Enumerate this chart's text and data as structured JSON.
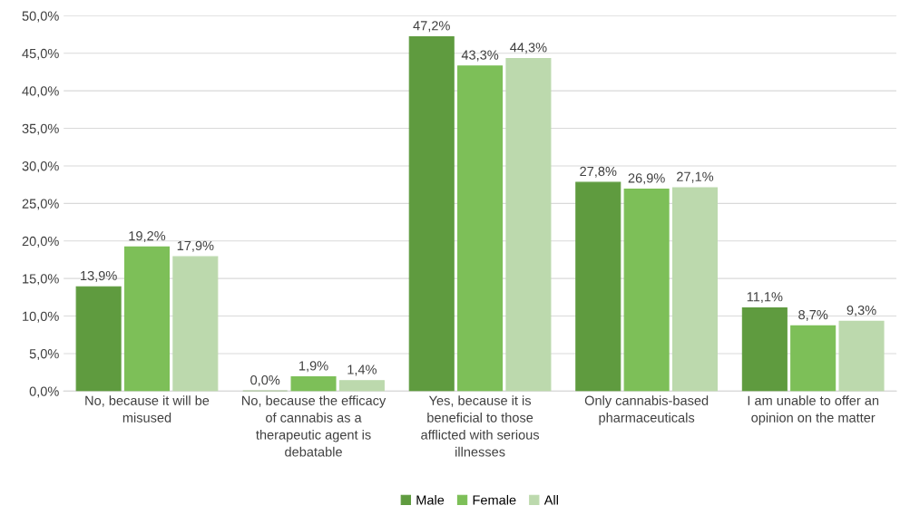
{
  "chart_data": {
    "type": "bar",
    "categories": [
      "No, because it will be\nmisused",
      "No, because the efficacy\nof cannabis as a\ntherapeutic agent is\ndebatable",
      "Yes, because it is\nbeneficial to those\nafflicted with serious\nillnesses",
      "Only cannabis-based\npharmaceuticals",
      "I am unable to offer an\nopinion on the matter"
    ],
    "series": [
      {
        "name": "Male",
        "color": "#5f9b3f",
        "values": [
          13.9,
          0.0,
          47.2,
          27.8,
          11.1
        ],
        "value_labels": [
          "13,9%",
          "0,0%",
          "47,2%",
          "27,8%",
          "11,1%"
        ]
      },
      {
        "name": "Female",
        "color": "#7dbf58",
        "values": [
          19.2,
          1.9,
          43.3,
          26.9,
          8.7
        ],
        "value_labels": [
          "19,2%",
          "1,9%",
          "43,3%",
          "26,9%",
          "8,7%"
        ]
      },
      {
        "name": "All",
        "color": "#bcd9ad",
        "values": [
          17.9,
          1.4,
          44.3,
          27.1,
          9.3
        ],
        "value_labels": [
          "17,9%",
          "1,4%",
          "44,3%",
          "27,1%",
          "9,3%"
        ]
      }
    ],
    "ylim": [
      0,
      50
    ],
    "yticks": [
      {
        "value": 0,
        "label": "0,0%"
      },
      {
        "value": 5,
        "label": "5,0%"
      },
      {
        "value": 10,
        "label": "10,0%"
      },
      {
        "value": 15,
        "label": "15,0%"
      },
      {
        "value": 20,
        "label": "20,0%"
      },
      {
        "value": 25,
        "label": "25,0%"
      },
      {
        "value": 30,
        "label": "30,0%"
      },
      {
        "value": 35,
        "label": "35,0%"
      },
      {
        "value": 40,
        "label": "40,0%"
      },
      {
        "value": 45,
        "label": "45,0%"
      },
      {
        "value": 50,
        "label": "50,0%"
      }
    ],
    "grid": "y",
    "legend": "bottom"
  }
}
